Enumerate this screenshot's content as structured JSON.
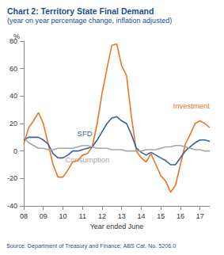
{
  "chart_data": {
    "type": "line",
    "title": "Chart 2: Territory State Final Demand",
    "subtitle": "(year on year percentage change, inflation adjusted)",
    "y_label": "%",
    "x_label": "Year ended June",
    "source": "Source: Department of Treasury and Finance; ABS Cat. No. 5206.0",
    "categories": [
      "08",
      null,
      null,
      null,
      "09",
      null,
      null,
      null,
      "10",
      null,
      null,
      null,
      "11",
      null,
      null,
      null,
      "12",
      null,
      null,
      null,
      "13",
      null,
      null,
      null,
      "14",
      null,
      null,
      null,
      "15",
      null,
      null,
      null,
      "16",
      null,
      null,
      null,
      "17",
      null,
      null
    ],
    "series": [
      {
        "name": "Investment",
        "color": "#e87722",
        "values": [
          5,
          17,
          22,
          28,
          20,
          5,
          -10,
          -19,
          -19,
          -14,
          -8,
          -7,
          -3,
          -2,
          3,
          20,
          42,
          60,
          77,
          78,
          62,
          55,
          25,
          0,
          -5,
          -8,
          -2,
          -10,
          -18,
          -22,
          -30,
          -25,
          -10,
          5,
          12,
          20,
          22,
          20,
          17
        ]
      },
      {
        "name": "SFD",
        "color": "#3a5f9e",
        "values": [
          8,
          10,
          10,
          10,
          8,
          5,
          -2,
          -5,
          -5,
          -3,
          0,
          0,
          1,
          2,
          3,
          8,
          14,
          20,
          24,
          25,
          22,
          20,
          12,
          2,
          -1,
          -3,
          -1,
          -3,
          -5,
          -7,
          -10,
          -10,
          -5,
          0,
          3,
          6,
          8,
          8,
          7
        ]
      },
      {
        "name": "Consumption",
        "color": "#a6a6a6",
        "values": [
          10,
          6,
          4,
          2,
          2,
          1,
          1,
          2,
          2,
          2,
          2,
          3,
          4,
          4,
          3,
          2,
          2,
          2,
          1,
          1,
          1,
          0,
          0,
          0,
          0,
          1,
          1,
          1,
          2,
          3,
          3,
          4,
          4,
          3,
          2,
          1,
          1,
          0,
          0
        ]
      }
    ],
    "ylim": [
      -40,
      80
    ],
    "yticks": [
      -40,
      -20,
      0,
      20,
      40,
      60,
      80
    ],
    "grid": false
  }
}
